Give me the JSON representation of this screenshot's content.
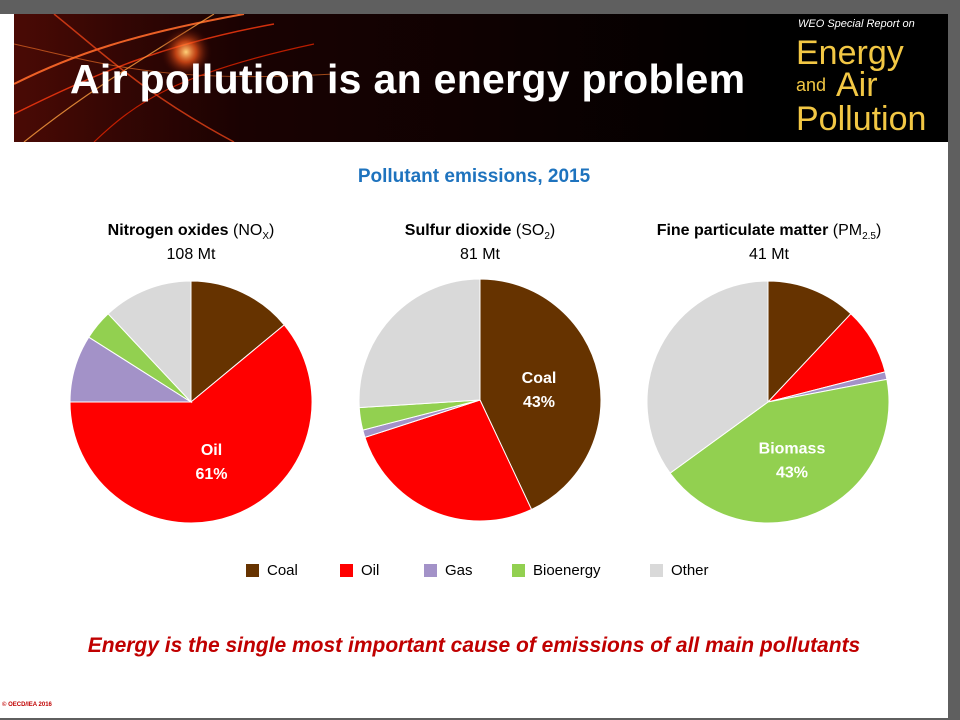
{
  "banner": {
    "title": "Air pollution is an energy problem",
    "logo_sub": "WEO Special Report on",
    "logo_line1": "Energy",
    "logo_and": "and",
    "logo_air": "Air",
    "logo_line3": "Pollution"
  },
  "chart_data": {
    "type": "pie",
    "title": "Pollutant emissions, 2015",
    "categories": [
      "Coal",
      "Oil",
      "Gas",
      "Bioenergy",
      "Other"
    ],
    "colors": {
      "Coal": "#663300",
      "Oil": "#ff0000",
      "Gas": "#a392c8",
      "Bioenergy": "#92d050",
      "Other": "#d9d9d9"
    },
    "pies": [
      {
        "name_main": "Nitrogen oxides",
        "name_formula": "NO",
        "name_sub": "X",
        "total": "108 Mt",
        "values": [
          14,
          61,
          9,
          4,
          12
        ],
        "label": {
          "category": "Oil",
          "name": "Oil",
          "pct": "61%"
        }
      },
      {
        "name_main": "Sulfur dioxide",
        "name_formula": "SO",
        "name_sub": "2",
        "total": "81 Mt",
        "values": [
          43,
          27,
          1,
          3,
          26
        ],
        "label": {
          "category": "Coal",
          "name": "Coal",
          "pct": "43%"
        }
      },
      {
        "name_main": "Fine particulate matter",
        "name_formula": "PM",
        "name_sub": "2.5",
        "total": "41 Mt",
        "values": [
          12,
          9,
          1,
          43,
          35
        ],
        "label": {
          "category": "Bioenergy",
          "name": "Biomass",
          "pct": "43%"
        }
      }
    ]
  },
  "legend": [
    {
      "label": "Coal",
      "color": "#663300"
    },
    {
      "label": "Oil",
      "color": "#ff0000"
    },
    {
      "label": "Gas",
      "color": "#a392c8"
    },
    {
      "label": "Bioenergy",
      "color": "#92d050"
    },
    {
      "label": "Other",
      "color": "#d9d9d9"
    }
  ],
  "footer": "Energy is the single most important cause of emissions of all main pollutants",
  "copyright": "© OECD/IEA 2016"
}
